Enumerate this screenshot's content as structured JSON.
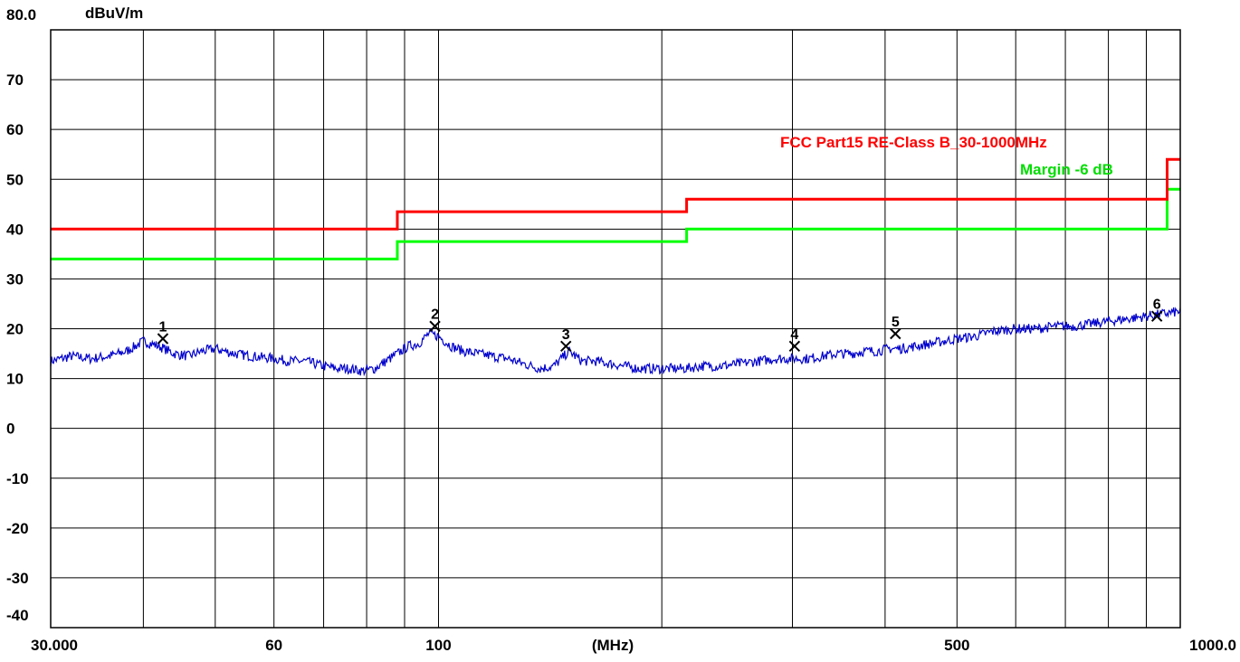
{
  "chart_data": {
    "type": "line",
    "y_unit": "dBuV/m",
    "x_unit": "(MHz)",
    "x_scale": "log",
    "xlim": [
      30,
      1000
    ],
    "ylim": [
      -40,
      80
    ],
    "grid": true,
    "y_ticks": [
      "80.0",
      "70",
      "60",
      "50",
      "40",
      "30",
      "20",
      "10",
      "0",
      "-10",
      "-20",
      "-30",
      "-40"
    ],
    "x_tick_labels": [
      {
        "value": 30,
        "label": "30.000"
      },
      {
        "value": 60,
        "label": "60"
      },
      {
        "value": 100,
        "label": "100"
      },
      {
        "value": 500,
        "label": "500"
      },
      {
        "value": 1000,
        "label": "1000.0"
      }
    ],
    "x_grid": [
      40,
      50,
      60,
      70,
      80,
      90,
      100,
      200,
      300,
      400,
      500,
      600,
      700,
      800,
      900
    ],
    "limit_line": {
      "name": "FCC Part15 RE-Class B_30-1000MHz",
      "color": "#ff0000",
      "segments": [
        {
          "x": [
            30,
            88
          ],
          "y": 40
        },
        {
          "x": [
            88,
            216
          ],
          "y": 43.5
        },
        {
          "x": [
            216,
            960
          ],
          "y": 46
        },
        {
          "x": [
            960,
            1000
          ],
          "y": 54
        }
      ]
    },
    "margin_line": {
      "name": "Margin -6 dB",
      "color": "#00ff00",
      "segments": [
        {
          "x": [
            30,
            88
          ],
          "y": 34
        },
        {
          "x": [
            88,
            216
          ],
          "y": 37.5
        },
        {
          "x": [
            216,
            960
          ],
          "y": 40
        },
        {
          "x": [
            960,
            1000
          ],
          "y": 48
        }
      ]
    },
    "trace": {
      "color": "#0000cc",
      "points": [
        [
          30,
          13.5
        ],
        [
          32,
          14.5
        ],
        [
          34,
          14
        ],
        [
          36,
          14.5
        ],
        [
          38,
          15.5
        ],
        [
          40,
          17.5
        ],
        [
          42,
          16.5
        ],
        [
          44,
          15
        ],
        [
          46,
          14.5
        ],
        [
          48,
          15.5
        ],
        [
          50,
          16
        ],
        [
          53,
          15
        ],
        [
          56,
          14.5
        ],
        [
          60,
          14
        ],
        [
          63,
          13.5
        ],
        [
          66,
          13.5
        ],
        [
          70,
          12.5
        ],
        [
          73,
          12
        ],
        [
          76,
          12
        ],
        [
          79,
          11.5
        ],
        [
          82,
          12
        ],
        [
          85,
          13.5
        ],
        [
          88,
          15
        ],
        [
          91,
          16.5
        ],
        [
          94,
          17
        ],
        [
          97,
          19
        ],
        [
          100,
          18.5
        ],
        [
          104,
          16.5
        ],
        [
          108,
          15.5
        ],
        [
          113,
          15
        ],
        [
          118,
          14.5
        ],
        [
          124,
          14
        ],
        [
          130,
          13
        ],
        [
          137,
          12
        ],
        [
          143,
          12.5
        ],
        [
          150,
          15.5
        ],
        [
          156,
          13.5
        ],
        [
          163,
          13.5
        ],
        [
          170,
          13
        ],
        [
          178,
          12.5
        ],
        [
          186,
          12
        ],
        [
          195,
          12
        ],
        [
          205,
          12
        ],
        [
          215,
          12
        ],
        [
          226,
          12.5
        ],
        [
          240,
          12.5
        ],
        [
          255,
          13
        ],
        [
          270,
          13.5
        ],
        [
          285,
          14
        ],
        [
          300,
          14
        ],
        [
          315,
          14
        ],
        [
          330,
          14.5
        ],
        [
          345,
          15
        ],
        [
          360,
          15
        ],
        [
          375,
          15.5
        ],
        [
          390,
          15.5
        ],
        [
          405,
          16
        ],
        [
          420,
          16
        ],
        [
          440,
          16.5
        ],
        [
          460,
          17
        ],
        [
          480,
          17.5
        ],
        [
          500,
          18
        ],
        [
          530,
          18.5
        ],
        [
          560,
          19.5
        ],
        [
          600,
          20
        ],
        [
          640,
          20
        ],
        [
          680,
          20.5
        ],
        [
          720,
          20.5
        ],
        [
          760,
          21
        ],
        [
          800,
          21.5
        ],
        [
          850,
          22
        ],
        [
          900,
          22.5
        ],
        [
          950,
          23
        ],
        [
          1000,
          23.5
        ]
      ]
    },
    "markers": [
      {
        "label": "1",
        "x": 42.5,
        "y": 18
      },
      {
        "label": "2",
        "x": 98.9,
        "y": 20.5
      },
      {
        "label": "3",
        "x": 148.5,
        "y": 16.5
      },
      {
        "label": "4",
        "x": 302,
        "y": 16.5
      },
      {
        "label": "5",
        "x": 413,
        "y": 19
      },
      {
        "label": "6",
        "x": 930,
        "y": 22.5
      }
    ]
  }
}
